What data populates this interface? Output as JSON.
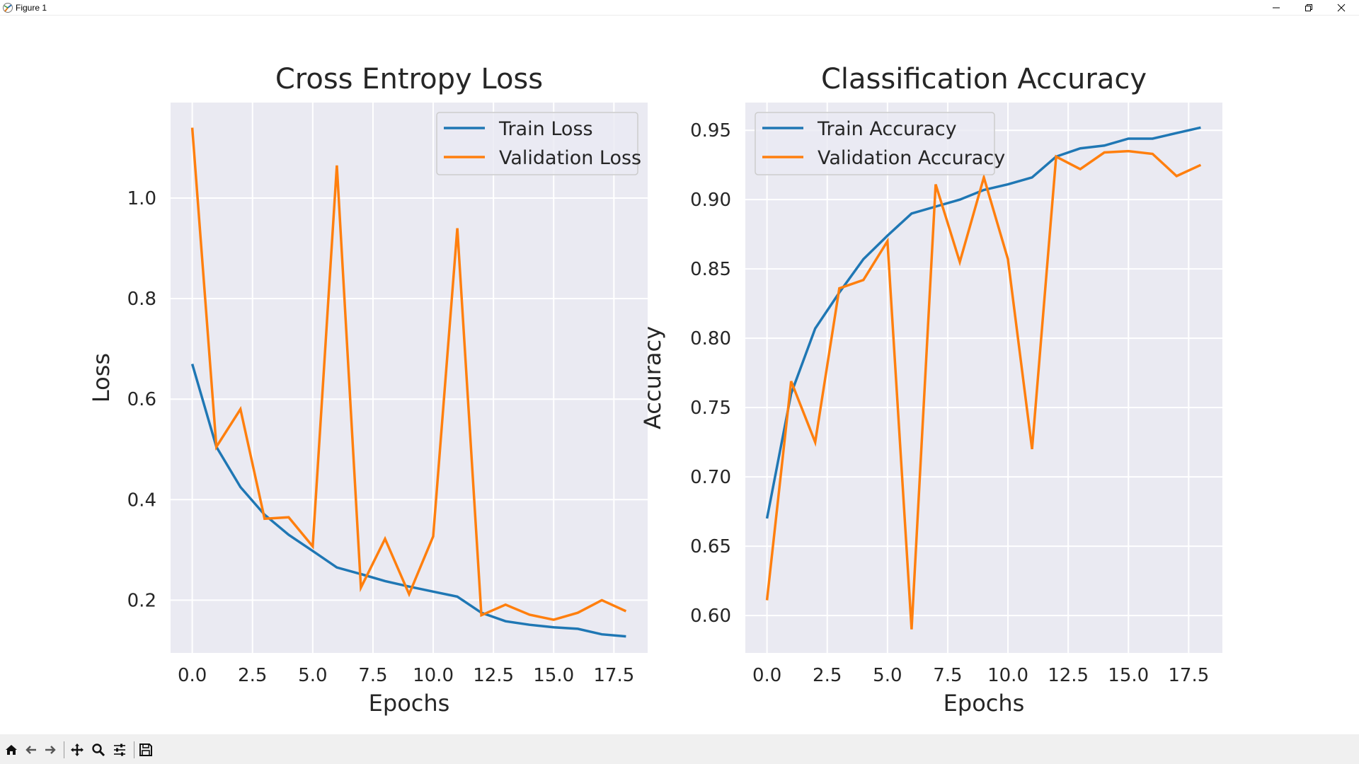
{
  "window": {
    "title": "Figure 1",
    "icons": [
      "matplotlib-icon",
      "minimize-icon",
      "restore-icon",
      "close-icon"
    ]
  },
  "toolbar": {
    "buttons": [
      "home-icon",
      "back-icon",
      "forward-icon",
      "pan-icon",
      "zoom-icon",
      "configure-subplots-icon",
      "save-icon"
    ]
  },
  "style": {
    "axes_bg": "#eaeaf2",
    "grid": "#ffffff",
    "train_color": "#1f77b4",
    "val_color": "#ff7f0e",
    "toolbar_bg": "#f0f0f0"
  },
  "chart_data": [
    {
      "type": "line",
      "title": "Cross Entropy Loss",
      "xlabel": "Epochs",
      "ylabel": "Loss",
      "xlim": [
        -0.9,
        18.9
      ],
      "ylim": [
        0.095,
        1.19
      ],
      "xticks": [
        0,
        2.5,
        5,
        7.5,
        10,
        12.5,
        15,
        17.5
      ],
      "xtick_labels": [
        "0.0",
        "2.5",
        "5.0",
        "7.5",
        "10.0",
        "12.5",
        "15.0",
        "17.5"
      ],
      "yticks": [
        0.2,
        0.4,
        0.6,
        0.8,
        1.0
      ],
      "ytick_labels": [
        "0.2",
        "0.4",
        "0.6",
        "0.8",
        "1.0"
      ],
      "grid": true,
      "legend": "upper right",
      "x": [
        0,
        1,
        2,
        3,
        4,
        5,
        6,
        7,
        8,
        9,
        10,
        11,
        12,
        13,
        14,
        15,
        16,
        17,
        18
      ],
      "series": [
        {
          "name": "Train Loss",
          "color": "#1f77b4",
          "values": [
            0.67,
            0.505,
            0.425,
            0.37,
            0.33,
            0.298,
            0.265,
            0.252,
            0.238,
            0.227,
            0.217,
            0.207,
            0.175,
            0.158,
            0.151,
            0.146,
            0.143,
            0.132,
            0.128
          ]
        },
        {
          "name": "Validation Loss",
          "color": "#ff7f0e",
          "values": [
            1.14,
            0.505,
            0.58,
            0.362,
            0.365,
            0.307,
            1.065,
            0.225,
            0.322,
            0.212,
            0.327,
            0.94,
            0.17,
            0.191,
            0.171,
            0.161,
            0.175,
            0.2,
            0.178
          ]
        }
      ]
    },
    {
      "type": "line",
      "title": "Classification Accuracy",
      "xlabel": "Epochs",
      "ylabel": "Accuracy",
      "xlim": [
        -0.9,
        18.9
      ],
      "ylim": [
        0.573,
        0.97
      ],
      "xticks": [
        0,
        2.5,
        5,
        7.5,
        10,
        12.5,
        15,
        17.5
      ],
      "xtick_labels": [
        "0.0",
        "2.5",
        "5.0",
        "7.5",
        "10.0",
        "12.5",
        "15.0",
        "17.5"
      ],
      "yticks": [
        0.6,
        0.65,
        0.7,
        0.75,
        0.8,
        0.85,
        0.9,
        0.95
      ],
      "ytick_labels": [
        "0.60",
        "0.65",
        "0.70",
        "0.75",
        "0.80",
        "0.85",
        "0.90",
        "0.95"
      ],
      "grid": true,
      "legend": "upper left",
      "x": [
        0,
        1,
        2,
        3,
        4,
        5,
        6,
        7,
        8,
        9,
        10,
        11,
        12,
        13,
        14,
        15,
        16,
        17,
        18
      ],
      "series": [
        {
          "name": "Train Accuracy",
          "color": "#1f77b4",
          "values": [
            0.67,
            0.76,
            0.807,
            0.833,
            0.857,
            0.874,
            0.89,
            0.895,
            0.9,
            0.907,
            0.911,
            0.916,
            0.931,
            0.937,
            0.939,
            0.944,
            0.944,
            0.948,
            0.952
          ]
        },
        {
          "name": "Validation Accuracy",
          "color": "#ff7f0e",
          "values": [
            0.611,
            0.769,
            0.725,
            0.836,
            0.842,
            0.87,
            0.59,
            0.911,
            0.855,
            0.916,
            0.857,
            0.72,
            0.931,
            0.922,
            0.934,
            0.935,
            0.933,
            0.917,
            0.925
          ]
        }
      ]
    }
  ]
}
